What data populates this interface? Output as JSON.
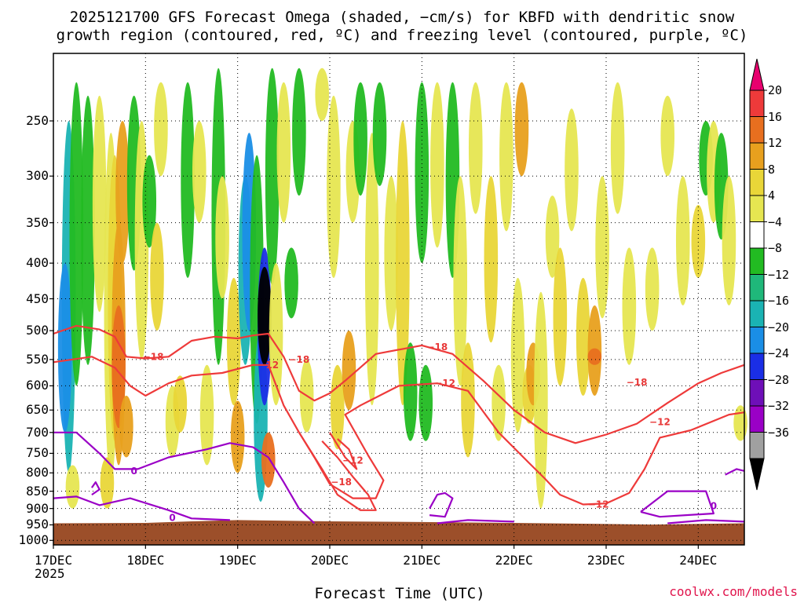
{
  "title": {
    "line1": "2025121700 GFS Forecast Omega (shaded, −cm/s) for KBFD with dendritic snow",
    "line2": "growth region (contoured, red, ºC) and freezing level (contoured, purple, ºC)"
  },
  "credit": "coolwx.com/models",
  "chart_data": {
    "type": "heatmap",
    "title": "2025121700 GFS Forecast Omega (shaded, −cm/s) for KBFD with dendritic snow growth region (contoured, red, ºC) and freezing level (contoured, purple, ºC)",
    "xlabel": "Forecast Time (UTC)",
    "ylabel": "",
    "x_ticks": [
      "17DEC",
      "18DEC",
      "19DEC",
      "20DEC",
      "21DEC",
      "22DEC",
      "23DEC",
      "24DEC"
    ],
    "x_year": "2025",
    "x_range_hours": [
      0,
      180
    ],
    "y_ticks": [
      250,
      300,
      350,
      400,
      450,
      500,
      550,
      600,
      650,
      700,
      750,
      800,
      850,
      900,
      950,
      1000
    ],
    "y_range_hPa": [
      200,
      1015
    ],
    "y_scale": "log",
    "grid": true,
    "ground_top_hPa": [
      {
        "h": 0,
        "p": 945
      },
      {
        "h": 24,
        "p": 944
      },
      {
        "h": 36,
        "p": 939
      },
      {
        "h": 48,
        "p": 935
      },
      {
        "h": 72,
        "p": 939
      },
      {
        "h": 96,
        "p": 941
      },
      {
        "h": 120,
        "p": 944
      },
      {
        "h": 156,
        "p": 949
      },
      {
        "h": 180,
        "p": 945
      }
    ],
    "colorbar": {
      "levels": [
        "20",
        "16",
        "12",
        "8",
        "4",
        "−4",
        "−8",
        "−12",
        "−16",
        "−20",
        "−24",
        "−28",
        "−32",
        "−36"
      ],
      "colors": [
        "#e8006e",
        "#ee3a3a",
        "#e86f1f",
        "#e8a01e",
        "#e9d638",
        "#e6e651",
        "#ffffff",
        "#22bb22",
        "#1fb87a",
        "#1ab3b3",
        "#1a8ee6",
        "#1a2ee6",
        "#6e0fb8",
        "#9a00c6",
        "#a0a0a0",
        "#000000"
      ]
    },
    "contours_red_-18": [
      [
        {
          "h": 0,
          "p": 505
        },
        {
          "h": 6,
          "p": 492
        },
        {
          "h": 12,
          "p": 498
        },
        {
          "h": 16,
          "p": 510
        },
        {
          "h": 19,
          "p": 545
        },
        {
          "h": 24,
          "p": 548
        },
        {
          "h": 30,
          "p": 545
        },
        {
          "h": 36,
          "p": 517
        },
        {
          "h": 42,
          "p": 510
        },
        {
          "h": 48,
          "p": 513
        },
        {
          "h": 52,
          "p": 508
        },
        {
          "h": 56,
          "p": 505
        },
        {
          "h": 60,
          "p": 545
        },
        {
          "h": 64,
          "p": 610
        },
        {
          "h": 68,
          "p": 630
        },
        {
          "h": 72,
          "p": 615
        },
        {
          "h": 76,
          "p": 590
        },
        {
          "h": 84,
          "p": 540
        },
        {
          "h": 96,
          "p": 525
        },
        {
          "h": 104,
          "p": 540
        },
        {
          "h": 112,
          "p": 590
        },
        {
          "h": 120,
          "p": 650
        },
        {
          "h": 128,
          "p": 700
        },
        {
          "h": 136,
          "p": 725
        },
        {
          "h": 144,
          "p": 705
        },
        {
          "h": 152,
          "p": 680
        },
        {
          "h": 160,
          "p": 635
        },
        {
          "h": 168,
          "p": 595
        },
        {
          "h": 174,
          "p": 575
        },
        {
          "h": 180,
          "p": 560
        }
      ],
      [
        {
          "h": 72,
          "p": 700
        },
        {
          "h": 76,
          "p": 760
        },
        {
          "h": 79,
          "p": 790
        },
        {
          "h": 77,
          "p": 740
        },
        {
          "h": 74,
          "p": 715
        }
      ],
      [
        {
          "h": 64,
          "p": 700
        },
        {
          "h": 70,
          "p": 790
        },
        {
          "h": 74,
          "p": 860
        },
        {
          "h": 80,
          "p": 905
        },
        {
          "h": 84,
          "p": 905
        },
        {
          "h": 82,
          "p": 860
        },
        {
          "h": 78,
          "p": 810
        },
        {
          "h": 74,
          "p": 760
        },
        {
          "h": 70,
          "p": 720
        }
      ]
    ],
    "contours_red_-12": [
      [
        {
          "h": 0,
          "p": 555
        },
        {
          "h": 10,
          "p": 545
        },
        {
          "h": 16,
          "p": 565
        },
        {
          "h": 20,
          "p": 600
        },
        {
          "h": 24,
          "p": 620
        },
        {
          "h": 30,
          "p": 595
        },
        {
          "h": 36,
          "p": 580
        },
        {
          "h": 44,
          "p": 575
        },
        {
          "h": 52,
          "p": 560
        },
        {
          "h": 56,
          "p": 560
        },
        {
          "h": 60,
          "p": 640
        },
        {
          "h": 64,
          "p": 700
        },
        {
          "h": 68,
          "p": 760
        },
        {
          "h": 72,
          "p": 830
        },
        {
          "h": 78,
          "p": 870
        },
        {
          "h": 84,
          "p": 870
        },
        {
          "h": 86,
          "p": 820
        },
        {
          "h": 82,
          "p": 755
        },
        {
          "h": 76,
          "p": 660
        },
        {
          "h": 80,
          "p": 640
        },
        {
          "h": 90,
          "p": 600
        },
        {
          "h": 100,
          "p": 595
        },
        {
          "h": 108,
          "p": 610
        },
        {
          "h": 116,
          "p": 700
        },
        {
          "h": 124,
          "p": 775
        },
        {
          "h": 128,
          "p": 815
        },
        {
          "h": 132,
          "p": 860
        },
        {
          "h": 138,
          "p": 888
        },
        {
          "h": 144,
          "p": 885
        },
        {
          "h": 150,
          "p": 855
        },
        {
          "h": 154,
          "p": 790
        },
        {
          "h": 158,
          "p": 712
        },
        {
          "h": 166,
          "p": 695
        },
        {
          "h": 176,
          "p": 660
        },
        {
          "h": 180,
          "p": 655
        }
      ]
    ],
    "contours_purple_0": [
      [
        {
          "h": 0,
          "p": 700
        },
        {
          "h": 6,
          "p": 700
        },
        {
          "h": 12,
          "p": 750
        },
        {
          "h": 16,
          "p": 790
        },
        {
          "h": 22,
          "p": 790
        },
        {
          "h": 30,
          "p": 760
        },
        {
          "h": 40,
          "p": 740
        },
        {
          "h": 46,
          "p": 725
        },
        {
          "h": 52,
          "p": 735
        },
        {
          "h": 56,
          "p": 760
        },
        {
          "h": 60,
          "p": 825
        },
        {
          "h": 64,
          "p": 900
        },
        {
          "h": 68,
          "p": 945
        }
      ],
      [
        {
          "h": 0,
          "p": 870
        },
        {
          "h": 6,
          "p": 865
        },
        {
          "h": 12,
          "p": 890
        },
        {
          "h": 20,
          "p": 870
        },
        {
          "h": 30,
          "p": 905
        },
        {
          "h": 36,
          "p": 930
        },
        {
          "h": 46,
          "p": 935
        }
      ],
      [
        {
          "h": 98,
          "p": 900
        },
        {
          "h": 100,
          "p": 860
        },
        {
          "h": 102,
          "p": 855
        },
        {
          "h": 104,
          "p": 870
        },
        {
          "h": 102,
          "p": 925
        },
        {
          "h": 98,
          "p": 920
        }
      ],
      [
        {
          "h": 153,
          "p": 910
        },
        {
          "h": 160,
          "p": 850
        },
        {
          "h": 170,
          "p": 850
        },
        {
          "h": 172,
          "p": 915
        },
        {
          "h": 158,
          "p": 925
        },
        {
          "h": 153,
          "p": 910
        }
      ],
      [
        {
          "h": 100,
          "p": 945
        },
        {
          "h": 108,
          "p": 935
        },
        {
          "h": 120,
          "p": 940
        }
      ],
      [
        {
          "h": 160,
          "p": 945
        },
        {
          "h": 170,
          "p": 935
        },
        {
          "h": 180,
          "p": 940
        }
      ],
      [
        {
          "h": 175,
          "p": 805
        },
        {
          "h": 178,
          "p": 790
        },
        {
          "h": 180,
          "p": 795
        }
      ],
      [
        {
          "h": 10,
          "p": 840
        },
        {
          "h": 11,
          "p": 825
        },
        {
          "h": 12,
          "p": 845
        },
        {
          "h": 10,
          "p": 860
        }
      ]
    ],
    "contour_labels": [
      {
        "text": "−18",
        "h": 26,
        "p": 545,
        "color": "#e83838"
      },
      {
        "text": "−12",
        "h": 56,
        "p": 560,
        "color": "#e83838"
      },
      {
        "text": "−18",
        "h": 64,
        "p": 550,
        "color": "#e83838"
      },
      {
        "text": "−18",
        "h": 100,
        "p": 528,
        "color": "#e83838"
      },
      {
        "text": "−12",
        "h": 102,
        "p": 595,
        "color": "#e83838"
      },
      {
        "text": "−12",
        "h": 78,
        "p": 768,
        "color": "#e83838"
      },
      {
        "text": "−18",
        "h": 75,
        "p": 825,
        "color": "#e83838"
      },
      {
        "text": "−12",
        "h": 142,
        "p": 888,
        "color": "#e83838"
      },
      {
        "text": "−18",
        "h": 152,
        "p": 593,
        "color": "#e83838"
      },
      {
        "text": "−12",
        "h": 158,
        "p": 676,
        "color": "#e83838"
      },
      {
        "text": "0",
        "h": 21,
        "p": 795,
        "color": "#9a00c6"
      },
      {
        "text": "0",
        "h": 31,
        "p": 928,
        "color": "#9a00c6"
      },
      {
        "text": "0",
        "h": 172,
        "p": 893,
        "color": "#9a00c6"
      }
    ],
    "omega_cells": [
      {
        "h": 4,
        "p0": 250,
        "p1": 800,
        "v": -12
      },
      {
        "h": 3,
        "p0": 400,
        "p1": 700,
        "v": -16
      },
      {
        "h": 6,
        "p0": 220,
        "p1": 600,
        "v": -8
      },
      {
        "h": 9,
        "p0": 230,
        "p1": 560,
        "v": -8
      },
      {
        "h": 12,
        "p0": 230,
        "p1": 470,
        "v": 4
      },
      {
        "h": 15,
        "p0": 260,
        "p1": 820,
        "v": 4
      },
      {
        "h": 16,
        "p0": 280,
        "p1": 720,
        "v": 8
      },
      {
        "h": 17,
        "p0": 350,
        "p1": 780,
        "v": 12
      },
      {
        "h": 17,
        "p0": 460,
        "p1": 690,
        "v": 16
      },
      {
        "h": 18,
        "p0": 250,
        "p1": 400,
        "v": 12
      },
      {
        "h": 19,
        "p0": 620,
        "p1": 760,
        "v": 12
      },
      {
        "h": 14,
        "p0": 760,
        "p1": 900,
        "v": 8
      },
      {
        "h": 5,
        "p0": 780,
        "p1": 900,
        "v": 4
      },
      {
        "h": 21,
        "p0": 230,
        "p1": 410,
        "v": -8
      },
      {
        "h": 23,
        "p0": 250,
        "p1": 550,
        "v": 4
      },
      {
        "h": 25,
        "p0": 280,
        "p1": 380,
        "v": -8
      },
      {
        "h": 27,
        "p0": 350,
        "p1": 500,
        "v": 8
      },
      {
        "h": 28,
        "p0": 220,
        "p1": 300,
        "v": 4
      },
      {
        "h": 31,
        "p0": 600,
        "p1": 760,
        "v": 4
      },
      {
        "h": 33,
        "p0": 580,
        "p1": 700,
        "v": 8
      },
      {
        "h": 35,
        "p0": 220,
        "p1": 420,
        "v": -8
      },
      {
        "h": 38,
        "p0": 250,
        "p1": 350,
        "v": 4
      },
      {
        "h": 40,
        "p0": 560,
        "p1": 780,
        "v": 4
      },
      {
        "h": 43,
        "p0": 210,
        "p1": 560,
        "v": -8
      },
      {
        "h": 44,
        "p0": 300,
        "p1": 450,
        "v": 4
      },
      {
        "h": 47,
        "p0": 420,
        "p1": 640,
        "v": 8
      },
      {
        "h": 48,
        "p0": 630,
        "p1": 800,
        "v": 12
      },
      {
        "h": 50,
        "p0": 300,
        "p1": 560,
        "v": -12
      },
      {
        "h": 51,
        "p0": 260,
        "p1": 500,
        "v": -16
      },
      {
        "h": 53,
        "p0": 280,
        "p1": 680,
        "v": -8
      },
      {
        "h": 54,
        "p0": 500,
        "p1": 880,
        "v": -12
      },
      {
        "h": 55,
        "p0": 380,
        "p1": 640,
        "v": -20
      },
      {
        "h": 55,
        "p0": 405,
        "p1": 560,
        "v": -36
      },
      {
        "h": 56,
        "p0": 700,
        "p1": 840,
        "v": 16
      },
      {
        "h": 57,
        "p0": 210,
        "p1": 430,
        "v": -8
      },
      {
        "h": 58,
        "p0": 400,
        "p1": 640,
        "v": 4
      },
      {
        "h": 60,
        "p0": 220,
        "p1": 350,
        "v": 4
      },
      {
        "h": 62,
        "p0": 380,
        "p1": 480,
        "v": -8
      },
      {
        "h": 64,
        "p0": 210,
        "p1": 320,
        "v": -8
      },
      {
        "h": 66,
        "p0": 550,
        "p1": 700,
        "v": 4
      },
      {
        "h": 70,
        "p0": 210,
        "p1": 250,
        "v": 4
      },
      {
        "h": 73,
        "p0": 230,
        "p1": 420,
        "v": 4
      },
      {
        "h": 74,
        "p0": 560,
        "p1": 740,
        "v": 8
      },
      {
        "h": 77,
        "p0": 500,
        "p1": 650,
        "v": 12
      },
      {
        "h": 78,
        "p0": 250,
        "p1": 350,
        "v": 4
      },
      {
        "h": 80,
        "p0": 220,
        "p1": 320,
        "v": -8
      },
      {
        "h": 83,
        "p0": 260,
        "p1": 640,
        "v": 4
      },
      {
        "h": 85,
        "p0": 220,
        "p1": 310,
        "v": -8
      },
      {
        "h": 88,
        "p0": 300,
        "p1": 500,
        "v": 4
      },
      {
        "h": 91,
        "p0": 250,
        "p1": 640,
        "v": 8
      },
      {
        "h": 93,
        "p0": 520,
        "p1": 720,
        "v": -8
      },
      {
        "h": 96,
        "p0": 220,
        "p1": 400,
        "v": -8
      },
      {
        "h": 97,
        "p0": 560,
        "p1": 720,
        "v": -8
      },
      {
        "h": 100,
        "p0": 220,
        "p1": 380,
        "v": 4
      },
      {
        "h": 104,
        "p0": 220,
        "p1": 420,
        "v": -8
      },
      {
        "h": 106,
        "p0": 300,
        "p1": 600,
        "v": 4
      },
      {
        "h": 108,
        "p0": 520,
        "p1": 760,
        "v": 8
      },
      {
        "h": 110,
        "p0": 220,
        "p1": 340,
        "v": 4
      },
      {
        "h": 114,
        "p0": 300,
        "p1": 520,
        "v": 8
      },
      {
        "h": 116,
        "p0": 560,
        "p1": 720,
        "v": 4
      },
      {
        "h": 118,
        "p0": 220,
        "p1": 360,
        "v": 4
      },
      {
        "h": 121,
        "p0": 420,
        "p1": 700,
        "v": 4
      },
      {
        "h": 122,
        "p0": 220,
        "p1": 300,
        "v": 12
      },
      {
        "h": 124,
        "p0": 560,
        "p1": 680,
        "v": 8
      },
      {
        "h": 125,
        "p0": 520,
        "p1": 640,
        "v": 12
      },
      {
        "h": 127,
        "p0": 440,
        "p1": 900,
        "v": 4
      },
      {
        "h": 130,
        "p0": 320,
        "p1": 420,
        "v": 4
      },
      {
        "h": 132,
        "p0": 380,
        "p1": 600,
        "v": 8
      },
      {
        "h": 135,
        "p0": 240,
        "p1": 360,
        "v": 4
      },
      {
        "h": 138,
        "p0": 420,
        "p1": 620,
        "v": 8
      },
      {
        "h": 141,
        "p0": 460,
        "p1": 620,
        "v": 12
      },
      {
        "h": 141,
        "p0": 530,
        "p1": 560,
        "v": 16
      },
      {
        "h": 143,
        "p0": 300,
        "p1": 480,
        "v": 4
      },
      {
        "h": 147,
        "p0": 220,
        "p1": 340,
        "v": 4
      },
      {
        "h": 150,
        "p0": 380,
        "p1": 560,
        "v": 4
      },
      {
        "h": 156,
        "p0": 380,
        "p1": 500,
        "v": 4
      },
      {
        "h": 160,
        "p0": 230,
        "p1": 300,
        "v": 4
      },
      {
        "h": 164,
        "p0": 300,
        "p1": 460,
        "v": 4
      },
      {
        "h": 168,
        "p0": 330,
        "p1": 420,
        "v": 8
      },
      {
        "h": 170,
        "p0": 250,
        "p1": 320,
        "v": -8
      },
      {
        "h": 172,
        "p0": 250,
        "p1": 350,
        "v": 4
      },
      {
        "h": 174,
        "p0": 260,
        "p1": 370,
        "v": -8
      },
      {
        "h": 176,
        "p0": 300,
        "p1": 460,
        "v": 4
      },
      {
        "h": 179,
        "p0": 640,
        "p1": 720,
        "v": 4
      }
    ]
  }
}
